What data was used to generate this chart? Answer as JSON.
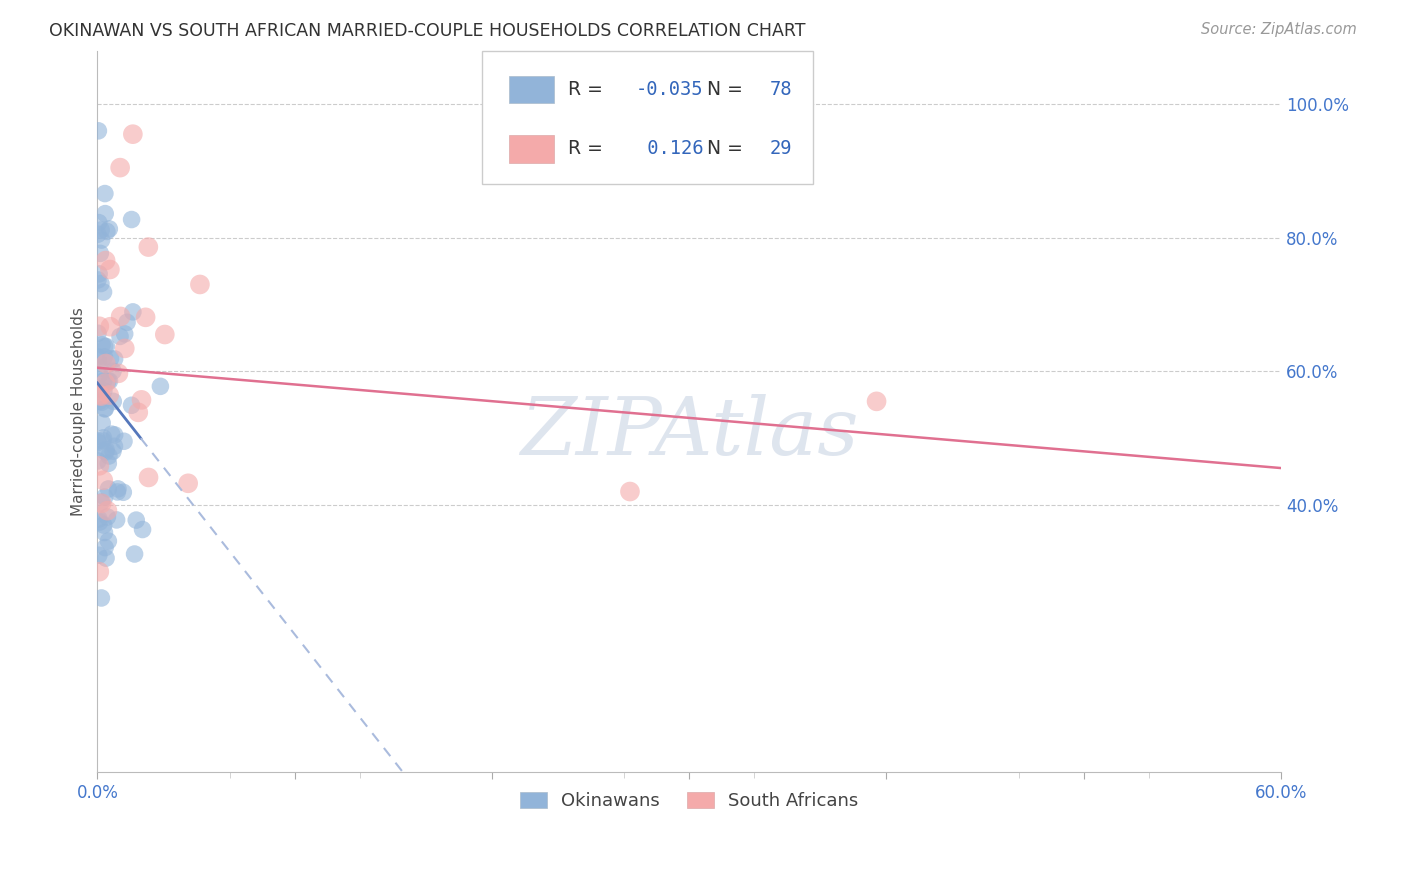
{
  "title": "OKINAWAN VS SOUTH AFRICAN MARRIED-COUPLE HOUSEHOLDS CORRELATION CHART",
  "source": "Source: ZipAtlas.com",
  "ylabel": "Married-couple Households",
  "xlim": [
    0.0,
    0.6
  ],
  "ylim": [
    0.0,
    1.08
  ],
  "ytick_positions": [
    0.4,
    0.6,
    0.8,
    1.0
  ],
  "ytick_labels_right": [
    "40.0%",
    "60.0%",
    "80.0%",
    "100.0%"
  ],
  "xtick_positions": [
    0.0,
    0.1,
    0.2,
    0.3,
    0.4,
    0.5,
    0.6
  ],
  "xtick_labels": [
    "0.0%",
    "",
    "",
    "",
    "",
    "",
    "60.0%"
  ],
  "blue_R": -0.035,
  "blue_N": 78,
  "pink_R": 0.126,
  "pink_N": 29,
  "blue_color": "#92B4D9",
  "blue_color_dark": "#6699CC",
  "pink_color": "#F4AAAA",
  "pink_color_dark": "#E87070",
  "blue_label": "Okinawans",
  "pink_label": "South Africans",
  "watermark": "ZIPAtlas",
  "title_color": "#333333",
  "axis_label_color": "#4477CC",
  "grid_color": "#CCCCCC",
  "blue_line_color": "#5577BB",
  "blue_dash_color": "#AABBDD",
  "pink_line_color": "#E07090",
  "legend_text_color_dark": "#222222",
  "legend_text_color_blue": "#3366BB",
  "source_color": "#999999"
}
